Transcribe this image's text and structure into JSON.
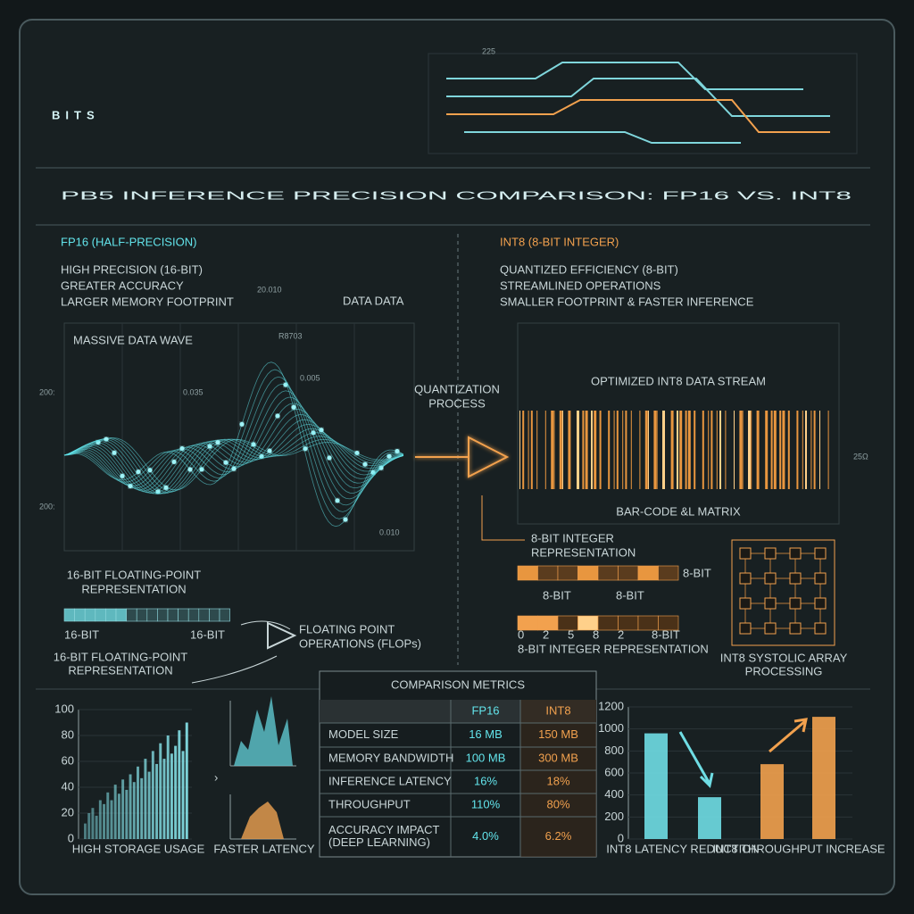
{
  "header": {
    "title": "BITS",
    "subtitle": "PB5 INFERENCE PRECISION COMPARISON: FP16 VS. INT8",
    "circuit_label": "225"
  },
  "fp16": {
    "heading": "FP16 (HALF-PRECISION)",
    "points": [
      "HIGH PRECISION (16-BIT)",
      "GREATER ACCURACY",
      "LARGER MEMORY FOOTPRINT"
    ],
    "wave_label": "MASSIVE DATA WAVE",
    "data_label": "DATA DATA",
    "axis_labels": [
      "200:",
      "200:"
    ],
    "annotations": [
      "20.010",
      "R8703",
      "0.005",
      "0.035",
      "0.010"
    ],
    "representation_top": [
      "16-BIT FLOATING-POINT",
      "REPRESENTATION"
    ],
    "bits_left": "16-BIT",
    "bits_right": "16-BIT",
    "representation_bottom": [
      "16-BIT FLOATING-POINT",
      "REPRESENTATION"
    ],
    "flops": [
      "FLOATING POINT",
      "OPERATIONS (FLOPs)"
    ]
  },
  "quantization": [
    "QUANTIZATION",
    "PROCESS"
  ],
  "int8": {
    "heading": "INT8 (8-BIT INTEGER)",
    "points": [
      "QUANTIZED EFFICIENCY (8-BIT)",
      "STREAMLINED OPERATIONS",
      "SMALLER FOOTPRINT & FASTER INFERENCE"
    ],
    "stream_label": "OPTIMIZED INT8 DATA STREAM",
    "matrix_label": "BAR-CODE &L MATRIX",
    "side_label": "25Ω",
    "representation_top": [
      "8-BIT INTEGER",
      "REPRESENTATION"
    ],
    "bit_labels": [
      "8-BIT",
      "8-BIT",
      "8-BIT"
    ],
    "index_labels": [
      "0",
      "2",
      "5",
      "8",
      "2",
      "8-BIT"
    ],
    "representation_bottom": "8-BIT INTEGER  REPRESENTATION",
    "systolic": [
      "INT8 SYSTOLIC ARRAY",
      "PROCESSING"
    ]
  },
  "table": {
    "title": "COMPARISON METRICS",
    "columns": [
      "FP16",
      "INT8"
    ],
    "rows": [
      [
        [
          "MODEL SIZE"
        ],
        "16 MB",
        "150 MB"
      ],
      [
        [
          "MEMORY BANDWIDTH"
        ],
        "100 MB",
        "300 MB"
      ],
      [
        [
          "INFERENCE LATENCY"
        ],
        "16%",
        "18%"
      ],
      [
        [
          "THROUGHPUT"
        ],
        "110%",
        "80%"
      ],
      [
        [
          "ACCURACY IMPACT",
          "(DEEP LEARNING)"
        ],
        "4.0%",
        "6.2%"
      ]
    ]
  },
  "mini_label": "FASTER LATENCY",
  "chart_data": [
    {
      "type": "bar",
      "label": "HIGH STORAGE USAGE",
      "color": "#7fd6dc",
      "values": [
        12,
        20,
        24,
        18,
        30,
        27,
        36,
        30,
        42,
        35,
        46,
        38,
        50,
        44,
        56,
        47,
        62,
        52,
        68,
        58,
        74,
        62,
        80,
        66,
        72,
        84,
        68,
        90
      ],
      "ylim": [
        0,
        100
      ],
      "yticks": [
        0,
        20,
        40,
        60,
        80,
        100
      ]
    },
    {
      "type": "bar",
      "group_labels": [
        "INT8 LATENCY REDUCTION",
        "INT8 THROUGHPUT INCREASE"
      ],
      "values": [
        960,
        380,
        680,
        1110
      ],
      "colors": [
        "#6fdde4",
        "#6fdde4",
        "#f2a14e",
        "#f2a14e"
      ],
      "ylim": [
        0,
        1200
      ],
      "yticks": [
        0,
        200,
        400,
        600,
        800,
        1000,
        1200
      ]
    }
  ]
}
